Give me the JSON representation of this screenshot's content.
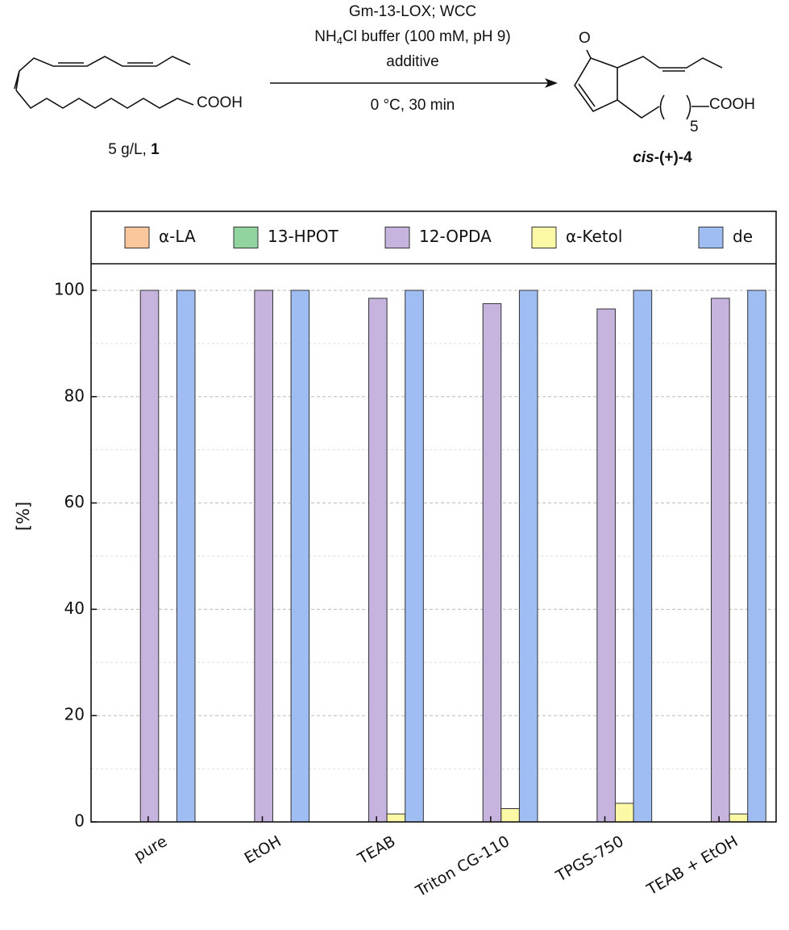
{
  "scheme": {
    "reagent_line1": "Gm-13-LOX; WCC",
    "reagent_line2_a": "NH",
    "reagent_line2_sub": "4",
    "reagent_line2_b": "Cl buffer (100 mM, pH 9)",
    "reagent_line3": "additive",
    "conditions": "0 °C, 30 min",
    "substrate_group": "COOH",
    "substrate_label": "5 g/L, ",
    "substrate_number": "1",
    "product_oxygen": "O",
    "product_group": "COOH",
    "product_repeat": "5",
    "product_prefix": "cis",
    "product_name": "-(+)-4"
  },
  "chart_data": {
    "type": "bar",
    "ylabel": "[%]",
    "categories": [
      "pure",
      "EtOH",
      "TEAB",
      "Triton CG-110",
      "TPGS-750",
      "TEAB + EtOH"
    ],
    "series": [
      {
        "name": "α-LA",
        "color": "#f9c79b",
        "values": [
          0,
          0,
          0,
          0,
          0,
          0
        ]
      },
      {
        "name": "13-HPOT",
        "color": "#91d4a0",
        "values": [
          0,
          0,
          0,
          0,
          0,
          0
        ]
      },
      {
        "name": "12-OPDA",
        "color": "#c6b3de",
        "values": [
          100,
          100,
          98.5,
          97.5,
          96.5,
          98.5
        ]
      },
      {
        "name": "α-Ketol",
        "color": "#fbf9a6",
        "values": [
          0,
          0,
          1.5,
          2.5,
          3.5,
          1.5
        ]
      },
      {
        "name": "de",
        "color": "#9fbdf3",
        "values": [
          100,
          100,
          100,
          100,
          100,
          100
        ]
      }
    ],
    "ylim": [
      0,
      105
    ],
    "yticks": [
      0,
      20,
      40,
      60,
      80,
      100
    ],
    "minor_yticks": [
      10,
      30,
      50,
      70,
      90
    ],
    "grid": true,
    "legend": "top"
  }
}
